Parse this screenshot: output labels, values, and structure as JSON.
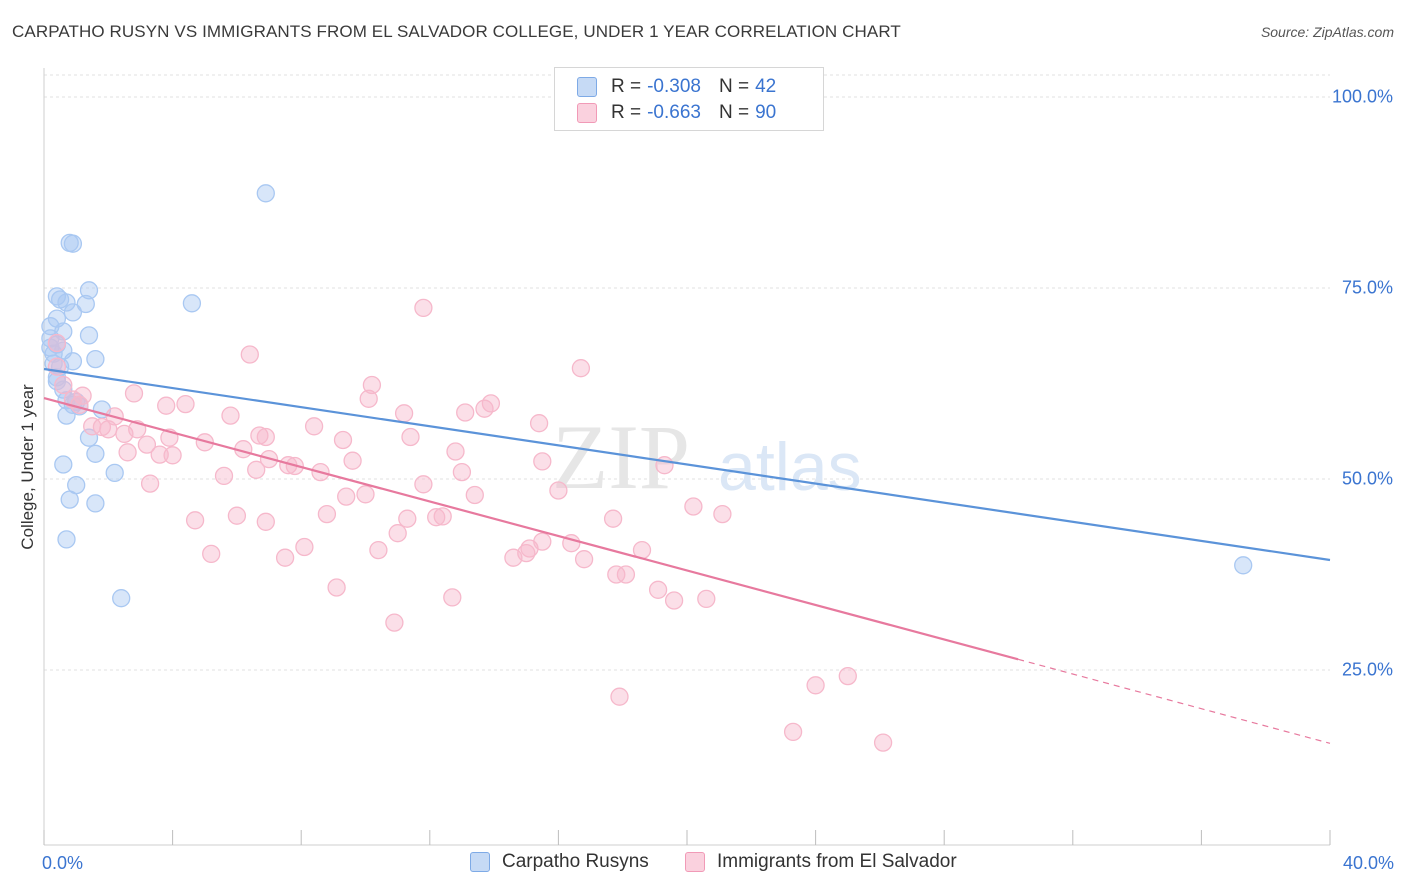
{
  "title": "CARPATHO RUSYN VS IMMIGRANTS FROM EL SALVADOR COLLEGE, UNDER 1 YEAR CORRELATION CHART",
  "source": "Source: ZipAtlas.com",
  "watermark": {
    "zip": "ZIP",
    "atlas": "atlas"
  },
  "legend_top": [
    {
      "r_label": "R =",
      "r_value": "-0.308",
      "n_label": "N =",
      "n_value": "42",
      "color": "#a9c8f2"
    },
    {
      "r_label": "R =",
      "r_value": "-0.663",
      "n_label": "N =",
      "n_value": "90",
      "color": "#f6b8cb"
    }
  ],
  "legend_bottom": [
    {
      "label": "Carpatho Rusyns",
      "color": "#a9c8f2"
    },
    {
      "label": "Immigrants from El Salvador",
      "color": "#f6b8cb"
    }
  ],
  "chart_data": {
    "type": "scatter",
    "title": "CARPATHO RUSYN VS IMMIGRANTS FROM EL SALVADOR COLLEGE, UNDER 1 YEAR CORRELATION CHART",
    "xlabel": "",
    "ylabel": "College, Under 1 year",
    "xlim": [
      0,
      40
    ],
    "ylim": [
      0,
      103
    ],
    "x_tick_labels": [
      "0.0%",
      "40.0%"
    ],
    "y_ticks": [
      25,
      50,
      75,
      100
    ],
    "y_tick_labels": [
      "25.0%",
      "50.0%",
      "75.0%",
      "100.0%"
    ],
    "grid": true,
    "legend_placement": "top-center",
    "series": [
      {
        "name": "Carpatho Rusyns",
        "color": "#5b93d9",
        "fill": "#a9c8f2",
        "trend": {
          "x": [
            0,
            40
          ],
          "y": [
            64.4,
            39.4
          ]
        },
        "points": [
          [
            0.8,
            80.9
          ],
          [
            0.9,
            80.8
          ],
          [
            6.9,
            87.4
          ],
          [
            1.4,
            74.7
          ],
          [
            0.4,
            73.9
          ],
          [
            0.5,
            73.5
          ],
          [
            0.7,
            73.1
          ],
          [
            1.3,
            72.9
          ],
          [
            4.6,
            73.0
          ],
          [
            0.9,
            71.8
          ],
          [
            0.4,
            71.0
          ],
          [
            0.2,
            70.0
          ],
          [
            0.6,
            69.3
          ],
          [
            1.4,
            68.8
          ],
          [
            0.2,
            68.4
          ],
          [
            0.4,
            67.6
          ],
          [
            0.2,
            67.2
          ],
          [
            0.6,
            66.8
          ],
          [
            0.3,
            66.4
          ],
          [
            1.6,
            65.7
          ],
          [
            0.9,
            65.4
          ],
          [
            0.3,
            65.1
          ],
          [
            0.5,
            64.7
          ],
          [
            0.4,
            62.8
          ],
          [
            0.6,
            61.7
          ],
          [
            0.7,
            60.3
          ],
          [
            1.0,
            60.1
          ],
          [
            0.9,
            59.7
          ],
          [
            1.1,
            59.5
          ],
          [
            1.8,
            59.1
          ],
          [
            0.7,
            58.3
          ],
          [
            1.4,
            55.4
          ],
          [
            1.6,
            53.3
          ],
          [
            0.6,
            51.9
          ],
          [
            2.2,
            50.8
          ],
          [
            1.0,
            49.2
          ],
          [
            0.8,
            47.3
          ],
          [
            1.6,
            46.8
          ],
          [
            0.7,
            42.1
          ],
          [
            2.4,
            34.4
          ],
          [
            37.3,
            38.7
          ],
          [
            0.4,
            63.3
          ]
        ]
      },
      {
        "name": "Immigrants from El Salvador",
        "color": "#e7799e",
        "fill": "#f6b8cb",
        "trend": {
          "x": [
            0,
            30.3
          ],
          "y": [
            60.6,
            26.4
          ]
        },
        "trend_dashed": {
          "x": [
            30.3,
            40
          ],
          "y": [
            26.4,
            15.4
          ]
        },
        "points": [
          [
            11.8,
            72.4
          ],
          [
            6.4,
            66.3
          ],
          [
            16.7,
            64.5
          ],
          [
            0.4,
            67.8
          ],
          [
            0.4,
            64.7
          ],
          [
            0.6,
            62.3
          ],
          [
            10.2,
            62.3
          ],
          [
            2.8,
            61.2
          ],
          [
            1.2,
            60.9
          ],
          [
            0.9,
            60.4
          ],
          [
            1.1,
            59.7
          ],
          [
            3.8,
            59.6
          ],
          [
            4.4,
            59.8
          ],
          [
            10.1,
            60.5
          ],
          [
            13.9,
            59.9
          ],
          [
            13.7,
            59.2
          ],
          [
            13.1,
            58.7
          ],
          [
            11.2,
            58.6
          ],
          [
            5.8,
            58.3
          ],
          [
            2.2,
            58.2
          ],
          [
            1.5,
            56.9
          ],
          [
            1.8,
            56.8
          ],
          [
            2.0,
            56.5
          ],
          [
            2.9,
            56.5
          ],
          [
            8.4,
            56.9
          ],
          [
            15.4,
            57.3
          ],
          [
            11.4,
            55.5
          ],
          [
            2.5,
            55.9
          ],
          [
            6.9,
            55.5
          ],
          [
            3.9,
            55.4
          ],
          [
            9.3,
            55.1
          ],
          [
            5.0,
            54.8
          ],
          [
            3.2,
            54.5
          ],
          [
            6.2,
            53.9
          ],
          [
            2.6,
            53.5
          ],
          [
            3.6,
            53.2
          ],
          [
            4.0,
            53.1
          ],
          [
            12.8,
            53.6
          ],
          [
            9.6,
            52.4
          ],
          [
            15.5,
            52.3
          ],
          [
            7.0,
            52.6
          ],
          [
            7.6,
            51.8
          ],
          [
            7.8,
            51.7
          ],
          [
            6.6,
            51.2
          ],
          [
            8.6,
            50.9
          ],
          [
            13.0,
            50.9
          ],
          [
            5.6,
            50.4
          ],
          [
            19.3,
            51.8
          ],
          [
            3.3,
            49.4
          ],
          [
            11.8,
            49.3
          ],
          [
            9.4,
            47.7
          ],
          [
            10.0,
            48.0
          ],
          [
            13.4,
            47.9
          ],
          [
            16.0,
            48.5
          ],
          [
            20.2,
            46.4
          ],
          [
            8.8,
            45.4
          ],
          [
            11.3,
            44.8
          ],
          [
            12.2,
            45.0
          ],
          [
            12.4,
            45.1
          ],
          [
            4.7,
            44.6
          ],
          [
            6.0,
            45.2
          ],
          [
            6.9,
            44.4
          ],
          [
            17.7,
            44.8
          ],
          [
            21.1,
            45.4
          ],
          [
            11.0,
            42.9
          ],
          [
            15.5,
            41.8
          ],
          [
            15.1,
            40.9
          ],
          [
            16.4,
            41.6
          ],
          [
            8.1,
            41.1
          ],
          [
            10.4,
            40.7
          ],
          [
            5.2,
            40.2
          ],
          [
            14.6,
            39.7
          ],
          [
            15.0,
            40.3
          ],
          [
            18.6,
            40.7
          ],
          [
            7.5,
            39.7
          ],
          [
            16.8,
            39.5
          ],
          [
            18.1,
            37.5
          ],
          [
            17.8,
            37.5
          ],
          [
            19.1,
            35.5
          ],
          [
            9.1,
            35.8
          ],
          [
            12.7,
            34.5
          ],
          [
            19.6,
            34.1
          ],
          [
            20.6,
            34.3
          ],
          [
            10.9,
            31.2
          ],
          [
            17.9,
            21.5
          ],
          [
            24.0,
            23.0
          ],
          [
            25.0,
            24.2
          ],
          [
            23.3,
            16.9
          ],
          [
            26.1,
            15.5
          ],
          [
            6.7,
            55.7
          ]
        ]
      }
    ]
  }
}
